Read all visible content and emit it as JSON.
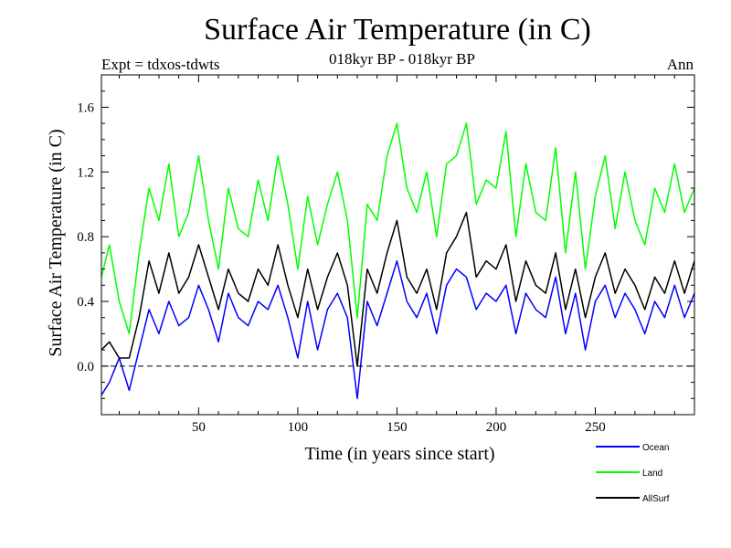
{
  "title": "Surface Air Temperature (in C)",
  "subtitle": "018kyr BP - 018kyr BP",
  "expt_label": "Expt = tdxos-tdwts",
  "period_label": "Ann",
  "chart_data": {
    "type": "line",
    "xlabel": "Time (in years since start)",
    "ylabel": "Surface Air Temperature (in C)",
    "xlim": [
      1,
      300
    ],
    "ylim": [
      -0.3,
      1.8
    ],
    "x_ticks": [
      50,
      100,
      150,
      200,
      250
    ],
    "y_ticks": [
      0.0,
      0.4,
      0.8,
      1.2,
      1.6
    ],
    "y_tick_labels": [
      "0.0",
      "0.4",
      "0.8",
      "1.2",
      "1.6"
    ],
    "zero_line": "dashed",
    "legend_position": "bottom-right, below plot",
    "x": [
      1,
      5,
      10,
      15,
      20,
      25,
      30,
      35,
      40,
      45,
      50,
      55,
      60,
      65,
      70,
      75,
      80,
      85,
      90,
      95,
      100,
      105,
      110,
      115,
      120,
      125,
      130,
      135,
      140,
      145,
      150,
      155,
      160,
      165,
      170,
      175,
      180,
      185,
      190,
      195,
      200,
      205,
      210,
      215,
      220,
      225,
      230,
      235,
      240,
      245,
      250,
      255,
      260,
      265,
      270,
      275,
      280,
      285,
      290,
      295,
      300
    ],
    "series": [
      {
        "name": "Ocean",
        "color": "#0000ff",
        "values": [
          -0.18,
          -0.1,
          0.05,
          -0.15,
          0.1,
          0.35,
          0.2,
          0.4,
          0.25,
          0.3,
          0.5,
          0.35,
          0.15,
          0.45,
          0.3,
          0.25,
          0.4,
          0.35,
          0.5,
          0.3,
          0.05,
          0.4,
          0.1,
          0.35,
          0.45,
          0.3,
          -0.2,
          0.4,
          0.25,
          0.45,
          0.65,
          0.4,
          0.3,
          0.45,
          0.2,
          0.5,
          0.6,
          0.55,
          0.35,
          0.45,
          0.4,
          0.5,
          0.2,
          0.45,
          0.35,
          0.3,
          0.55,
          0.2,
          0.45,
          0.1,
          0.4,
          0.5,
          0.3,
          0.45,
          0.35,
          0.2,
          0.4,
          0.3,
          0.5,
          0.3,
          0.45
        ]
      },
      {
        "name": "Land",
        "color": "#00ff00",
        "values": [
          0.55,
          0.75,
          0.4,
          0.2,
          0.7,
          1.1,
          0.9,
          1.25,
          0.8,
          0.95,
          1.3,
          0.9,
          0.6,
          1.1,
          0.85,
          0.8,
          1.15,
          0.9,
          1.3,
          1.0,
          0.6,
          1.05,
          0.75,
          1.0,
          1.2,
          0.9,
          0.3,
          1.0,
          0.9,
          1.3,
          1.5,
          1.1,
          0.95,
          1.2,
          0.8,
          1.25,
          1.3,
          1.5,
          1.0,
          1.15,
          1.1,
          1.45,
          0.8,
          1.25,
          0.95,
          0.9,
          1.35,
          0.7,
          1.2,
          0.6,
          1.05,
          1.3,
          0.85,
          1.2,
          0.9,
          0.75,
          1.1,
          0.95,
          1.25,
          0.95,
          1.1
        ]
      },
      {
        "name": "AllSurf",
        "color": "#000000",
        "values": [
          0.1,
          0.15,
          0.05,
          0.05,
          0.3,
          0.65,
          0.45,
          0.7,
          0.45,
          0.55,
          0.75,
          0.55,
          0.35,
          0.6,
          0.45,
          0.4,
          0.6,
          0.5,
          0.75,
          0.5,
          0.3,
          0.6,
          0.35,
          0.55,
          0.7,
          0.5,
          0.0,
          0.6,
          0.45,
          0.7,
          0.9,
          0.55,
          0.45,
          0.6,
          0.35,
          0.7,
          0.8,
          0.95,
          0.55,
          0.65,
          0.6,
          0.75,
          0.4,
          0.65,
          0.5,
          0.45,
          0.7,
          0.35,
          0.6,
          0.3,
          0.55,
          0.7,
          0.45,
          0.6,
          0.5,
          0.35,
          0.55,
          0.45,
          0.65,
          0.45,
          0.65
        ]
      }
    ]
  }
}
